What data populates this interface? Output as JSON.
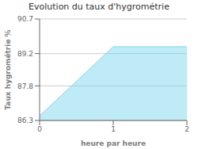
{
  "chart_data": {
    "type": "area",
    "title": "Evolution du taux d'hygrométrie",
    "xlabel": "heure par heure",
    "ylabel": "Taux hygrométrie %",
    "x": [
      0,
      1,
      2
    ],
    "values": [
      86.5,
      89.5,
      89.5
    ],
    "xlim": [
      0,
      2
    ],
    "xticks": [
      0,
      1,
      2
    ],
    "ylim": [
      86.3,
      90.7
    ],
    "yticks": [
      86.3,
      87.8,
      89.2,
      90.7
    ],
    "color": "#7dd8ee",
    "grid": true
  }
}
